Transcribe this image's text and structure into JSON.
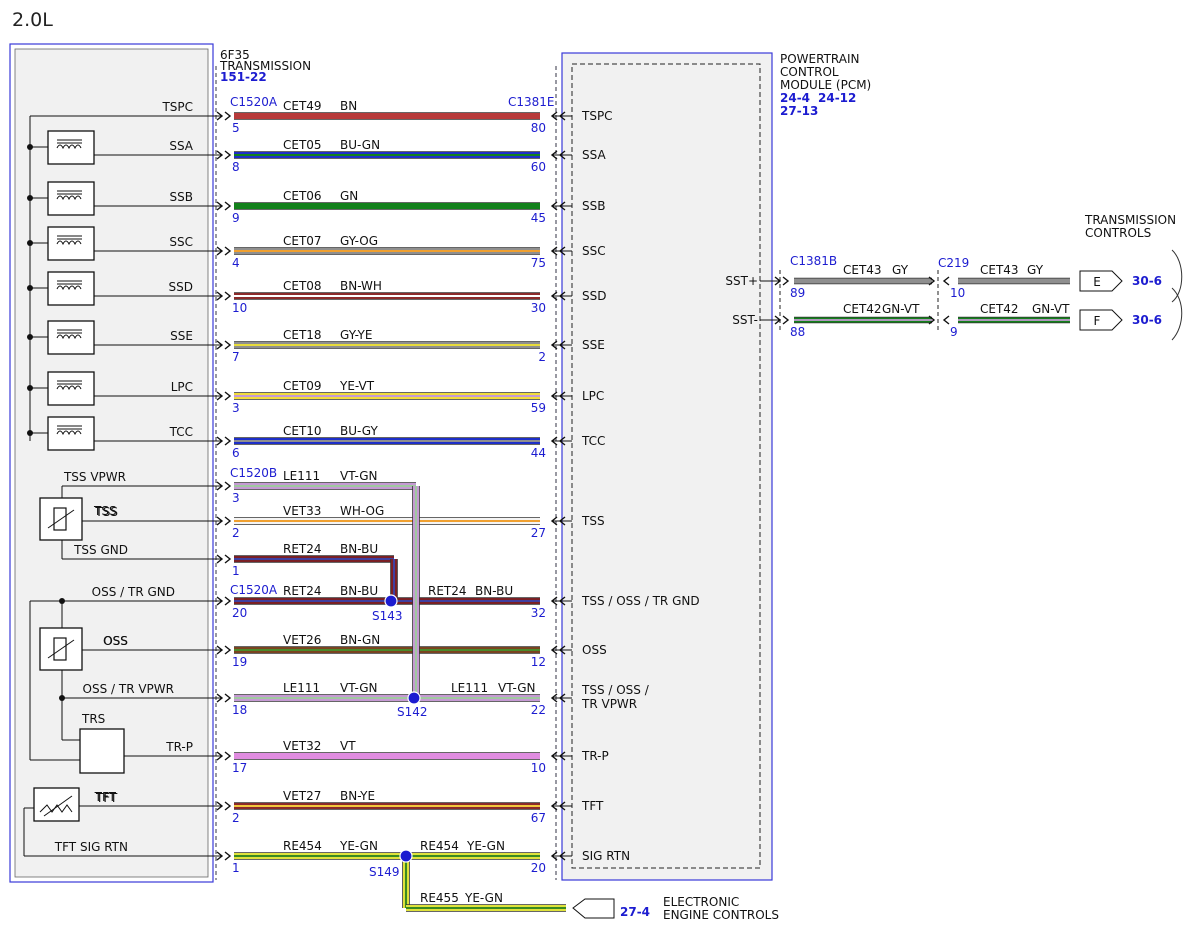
{
  "title": "2.0L",
  "transmission": {
    "name_line1": "6F35",
    "name_line2": "TRANSMISSION",
    "ref": "151-22",
    "connector_top": "C1520A",
    "connector_tss": "C1520B",
    "connector_oss": "C1520A"
  },
  "pcm": {
    "name_line1": "POWERTRAIN",
    "name_line2": "CONTROL",
    "name_line3": "MODULE (PCM)",
    "ref1": "24-4",
    "ref2": "24-12",
    "ref3": "27-13",
    "connector": "C1381E",
    "right_connector": "C1381B"
  },
  "circuits": [
    {
      "tx_label": "TSPC",
      "pcm_label": "TSPC",
      "circuit": "CET49",
      "color_code": "BN",
      "tx_pin": "5",
      "pcm_pin": "80",
      "colors": [
        "#b73a3a"
      ]
    },
    {
      "tx_label": "SSA",
      "pcm_label": "SSA",
      "circuit": "CET05",
      "color_code": "BU-GN",
      "tx_pin": "8",
      "pcm_pin": "60",
      "colors": [
        "#1e2fc8",
        "#13811b"
      ]
    },
    {
      "tx_label": "SSB",
      "pcm_label": "SSB",
      "circuit": "CET06",
      "color_code": "GN",
      "tx_pin": "9",
      "pcm_pin": "45",
      "colors": [
        "#13811b"
      ]
    },
    {
      "tx_label": "SSC",
      "pcm_label": "SSC",
      "circuit": "CET07",
      "color_code": "GY-OG",
      "tx_pin": "4",
      "pcm_pin": "75",
      "colors": [
        "#8f8f8f",
        "#f0a030"
      ]
    },
    {
      "tx_label": "SSD",
      "pcm_label": "SSD",
      "circuit": "CET08",
      "color_code": "BN-WH",
      "tx_pin": "10",
      "pcm_pin": "30",
      "colors": [
        "#8b2a2a",
        "#ffffff"
      ]
    },
    {
      "tx_label": "SSE",
      "pcm_label": "SSE",
      "circuit": "CET18",
      "color_code": "GY-YE",
      "tx_pin": "7",
      "pcm_pin": "2",
      "colors": [
        "#8f8f8f",
        "#e8dc3a"
      ]
    },
    {
      "tx_label": "LPC",
      "pcm_label": "LPC",
      "circuit": "CET09",
      "color_code": "YE-VT",
      "tx_pin": "3",
      "pcm_pin": "59",
      "colors": [
        "#f2dc3c",
        "#c69ad4"
      ]
    },
    {
      "tx_label": "TCC",
      "pcm_label": "TCC",
      "circuit": "CET10",
      "color_code": "BU-GY",
      "tx_pin": "6",
      "pcm_pin": "44",
      "colors": [
        "#1e2fc8",
        "#8f8f8f"
      ]
    },
    {
      "tx_label": "TSS VPWR",
      "circuit": "LE111",
      "color_code": "VT-GN",
      "tx_pin": "3",
      "colors": [
        "#c69ad4",
        "#a0c8a0"
      ]
    },
    {
      "tx_label": "TSS",
      "pcm_label": "TSS",
      "circuit": "VET33",
      "color_code": "WH-OG",
      "tx_pin": "2",
      "pcm_pin": "27",
      "colors": [
        "#f4f4f4",
        "#f0a030"
      ]
    },
    {
      "tx_label": "TSS GND",
      "circuit": "RET24",
      "color_code": "BN-BU",
      "tx_pin": "1",
      "colors": [
        "#7a2024",
        "#3f3fa0"
      ]
    },
    {
      "tx_label": "OSS / TR GND",
      "pcm_label": "TSS / OSS / TR GND",
      "circuit": "RET24",
      "color_code": "BN-BU",
      "tx_pin": "20",
      "pcm_pin": "32",
      "right_circuit": "RET24",
      "right_color_code": "BN-BU",
      "splice": "S143",
      "colors": [
        "#7a2024",
        "#3f3fa0"
      ]
    },
    {
      "tx_label": "OSS",
      "pcm_label": "OSS",
      "circuit": "VET26",
      "color_code": "BN-GN",
      "tx_pin": "19",
      "pcm_pin": "12",
      "colors": [
        "#7a4420",
        "#4a8a2a"
      ]
    },
    {
      "tx_label": "OSS / TR VPWR",
      "pcm_label_line1": "TSS / OSS /",
      "pcm_label_line2": "TR VPWR",
      "circuit": "LE111",
      "color_code": "VT-GN",
      "tx_pin": "18",
      "pcm_pin": "22",
      "right_circuit": "LE111",
      "right_color_code": "VT-GN",
      "splice": "S142",
      "colors": [
        "#c69ad4",
        "#a0c8a0"
      ]
    },
    {
      "tx_label": "TR-P",
      "pcm_label": "TR-P",
      "circuit": "VET32",
      "color_code": "VT",
      "tx_pin": "17",
      "pcm_pin": "10",
      "colors": [
        "#e08ce0"
      ]
    },
    {
      "tx_label": "TFT",
      "pcm_label": "TFT",
      "circuit": "VET27",
      "color_code": "BN-YE",
      "tx_pin": "2",
      "pcm_pin": "67",
      "colors": [
        "#8b2a2a",
        "#f2c83c"
      ]
    },
    {
      "tx_label": "TFT SIG RTN",
      "pcm_label": "SIG RTN",
      "circuit": "RE454",
      "color_code": "YE-GN",
      "tx_pin": "1",
      "pcm_pin": "20",
      "right_circuit": "RE454",
      "right_color_code": "YE-GN",
      "splice": "S149",
      "colors": [
        "#dfe23a",
        "#3a8a20"
      ]
    }
  ],
  "components": {
    "tss": "TSS",
    "oss": "OSS",
    "trs": "TRS",
    "tft": "TFT"
  },
  "eec": {
    "circuit": "RE455",
    "color_code": "YE-GN",
    "ref": "27-4",
    "label_line1": "ELECTRONIC",
    "label_line2": "ENGINE CONTROLS"
  },
  "tc": {
    "title_line1": "TRANSMISSION",
    "title_line2": "CONTROLS",
    "inline_connector": "C219",
    "wires": [
      {
        "pcm_label": "SST+",
        "pcm_pin": "89",
        "circuit_left": "CET43",
        "color_left": "GY",
        "inline_pin": "10",
        "circuit_right": "CET43",
        "color_right": "GY",
        "dest": "E",
        "ref": "30-6",
        "colors": [
          "#8f8f8f"
        ]
      },
      {
        "pcm_label": "SST-",
        "pcm_pin": "88",
        "circuit_left": "CET42",
        "color_left": "GN-VT",
        "inline_pin": "9",
        "circuit_right": "CET42",
        "color_right": "GN-VT",
        "dest": "F",
        "ref": "30-6",
        "colors": [
          "#13811b",
          "#c69ad4"
        ]
      }
    ]
  }
}
